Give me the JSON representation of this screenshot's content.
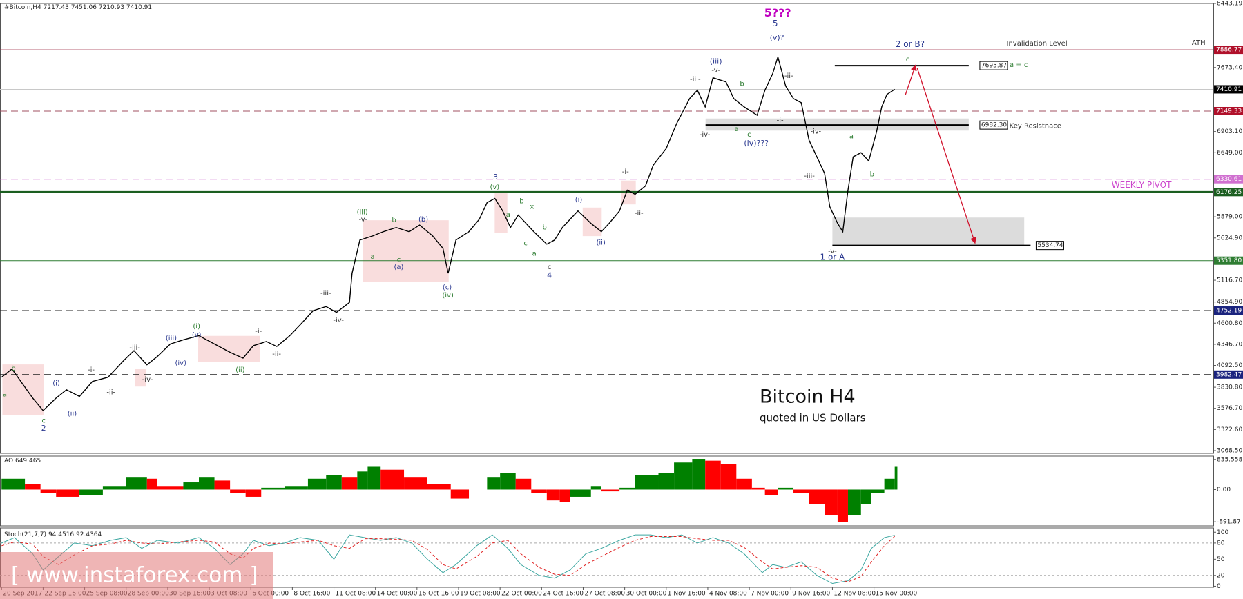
{
  "header": {
    "symbol": "#Bitcoin,H4",
    "ohlc": [
      7217.43,
      7451.06,
      7210.93,
      7410.91
    ]
  },
  "watermark": "[ www.instaforex.com ]",
  "chart_data": [
    {
      "type": "line",
      "title": "Bitcoin H4",
      "subtitle": "quoted in US Dollars",
      "color": "#000000",
      "x": [
        0,
        4,
        12,
        16,
        21,
        25,
        30,
        35,
        41,
        47,
        51,
        56,
        60,
        65,
        70,
        76,
        82,
        88,
        93,
        97,
        102,
        106,
        111,
        115,
        120,
        125,
        129,
        134,
        135,
        138,
        143,
        147,
        152,
        157,
        161,
        166,
        170,
        172,
        175,
        180,
        184,
        187,
        190,
        193,
        196,
        199,
        202,
        205,
        210,
        213,
        216,
        219,
        222,
        227,
        231,
        234,
        238,
        241,
        244,
        248,
        251,
        256,
        260,
        265,
        268,
        271,
        274,
        279,
        282,
        286,
        291,
        294,
        297,
        299,
        302,
        305,
        308,
        311,
        314,
        317,
        319,
        322,
        324,
        326,
        328,
        331,
        334,
        337,
        339,
        341,
        344
      ],
      "values": [
        3950,
        4050,
        3700,
        3550,
        3700,
        3800,
        3720,
        3900,
        3950,
        4150,
        4270,
        4100,
        4200,
        4350,
        4400,
        4450,
        4350,
        4250,
        4180,
        4330,
        4380,
        4320,
        4450,
        4580,
        4750,
        4800,
        4730,
        4850,
        5200,
        5600,
        5650,
        5700,
        5750,
        5700,
        5780,
        5650,
        5500,
        5200,
        5600,
        5700,
        5850,
        6050,
        6100,
        5950,
        5750,
        5900,
        5800,
        5700,
        5550,
        5600,
        5750,
        5850,
        5950,
        5800,
        5700,
        5800,
        5950,
        6200,
        6150,
        6250,
        6500,
        6700,
        7000,
        7300,
        7400,
        7200,
        7550,
        7500,
        7300,
        7200,
        7100,
        7400,
        7600,
        7800,
        7450,
        7300,
        7250,
        6800,
        6600,
        6400,
        6000,
        5800,
        5700,
        6200,
        6600,
        6650,
        6550,
        6900,
        7200,
        7350,
        7410.91
      ],
      "xlim": [
        -0.6,
        466.7
      ],
      "ylim": [
        3068.5,
        8443.19
      ],
      "yticks": [
        8443.19,
        {
          "value": 7673.4,
          "label": "7673.40"
        },
        {
          "value": 6903.1,
          "label": "6903.10"
        },
        {
          "value": 6649,
          "label": "6649.00"
        },
        {
          "value": 5879,
          "label": "5879.00"
        },
        {
          "value": 5624.9,
          "label": "5624.90"
        },
        {
          "value": 5116.7,
          "label": "5116.70"
        },
        {
          "value": 4854.9,
          "label": "4854.90"
        },
        {
          "value": 4600.8,
          "label": "4600.80"
        },
        {
          "value": 4346.7,
          "label": "4346.70"
        },
        {
          "value": 4092.5,
          "label": "4092.50"
        },
        {
          "value": 3830.8,
          "label": "3830.80"
        },
        {
          "value": 3576.7,
          "label": "3576.70"
        },
        {
          "value": 3322.6,
          "label": "3322.60"
        },
        {
          "value": 3068.5,
          "label": "3068.50"
        }
      ],
      "levels": [
        {
          "value": 7886.77,
          "color": "#a0304a",
          "box": "#b0102a",
          "dash": false,
          "width": 1
        },
        {
          "value": 7410.91,
          "color": "#c8c8c8",
          "box": "#000000",
          "dash": false,
          "width": 1
        },
        {
          "value": 7149.33,
          "color": "#a05060",
          "box": "#b0102a",
          "dash": true,
          "width": 1
        },
        {
          "value": 6330.61,
          "color": "#d070d0",
          "box": "#d070d0",
          "dash": true,
          "width": 1
        },
        {
          "value": 6176.25,
          "color": "#1b5e20",
          "box": "#1b5e20",
          "dash": false,
          "width": 3
        },
        {
          "value": 5351.8,
          "label": "5351.80",
          "color": "#2e7d32",
          "box": "#2e7d32",
          "dash": false,
          "width": 1
        },
        {
          "value": 4752.19,
          "color": "#222222",
          "box": "#1a237e",
          "dash": true,
          "width": 1
        },
        {
          "value": 3982.47,
          "color": "#222222",
          "box": "#1a237e",
          "dash": true,
          "width": 1
        }
      ],
      "targets": [
        {
          "value": 7695.87
        },
        {
          "value": 6982.3,
          "label": "6982.30"
        },
        {
          "value": 5534.74
        }
      ],
      "zones": [
        {
          "top": 7060,
          "bottom": 6915
        },
        {
          "top": 5870,
          "bottom": 5540
        }
      ],
      "annotations": [
        {
          "text": "5???",
          "color": "#c000c0"
        },
        {
          "text": "5",
          "color": "#2b3990"
        },
        {
          "text": "(v)?",
          "color": "#2b3990"
        },
        {
          "text": "2 or B?",
          "color": "#2b3990"
        },
        {
          "text": "Invalidation Level",
          "color": "#333333"
        },
        {
          "text": "ATH",
          "color": "#333333"
        },
        {
          "text": "c",
          "color": "#2e7d32"
        },
        {
          "text": "a = c",
          "color": "#2e7d32"
        },
        {
          "text": "Key Resistnace",
          "color": "#333333"
        },
        {
          "text": "WEEKLY PIVOT",
          "color": "#cc44cc"
        },
        {
          "text": "-v-",
          "color": "#333333"
        },
        {
          "text": "1 or A",
          "color": "#2b3990"
        },
        {
          "text": "(iii)",
          "color": "#2b3990"
        },
        {
          "text": "-v-",
          "color": "#333333"
        },
        {
          "text": "-iii-",
          "color": "#333333"
        },
        {
          "text": "b",
          "color": "#2e7d32"
        },
        {
          "text": "-ii-",
          "color": "#333333"
        },
        {
          "text": "-i-",
          "color": "#333333"
        },
        {
          "text": "a",
          "color": "#2e7d32"
        },
        {
          "text": "c",
          "color": "#2e7d32"
        },
        {
          "text": "-iv-",
          "color": "#333333"
        },
        {
          "text": "(iv)???",
          "color": "#2b3990"
        },
        {
          "text": "-iv-",
          "color": "#333333"
        },
        {
          "text": "a",
          "color": "#2e7d32"
        },
        {
          "text": "b",
          "color": "#2e7d32"
        },
        {
          "text": "-iii-",
          "color": "#333333"
        },
        {
          "text": "-i-",
          "color": "#333333"
        },
        {
          "text": "-ii-",
          "color": "#333333"
        },
        {
          "text": "3",
          "color": "#2b3990"
        },
        {
          "text": "(v)",
          "color": "#2e7d32"
        },
        {
          "text": "b",
          "color": "#2e7d32"
        },
        {
          "text": "x",
          "color": "#2e7d32"
        },
        {
          "text": "a",
          "color": "#2e7d32"
        },
        {
          "text": "b",
          "color": "#2e7d32"
        },
        {
          "text": "c",
          "color": "#2e7d32"
        },
        {
          "text": "a",
          "color": "#2e7d32"
        },
        {
          "text": "c",
          "color": "#333333"
        },
        {
          "text": "4",
          "color": "#2b3990"
        },
        {
          "text": "(i)",
          "color": "#2b3990"
        },
        {
          "text": "(ii)",
          "color": "#2b3990"
        },
        {
          "text": "(b)",
          "color": "#2b3990"
        },
        {
          "text": "b",
          "color": "#2e7d32"
        },
        {
          "text": "a",
          "color": "#2e7d32"
        },
        {
          "text": "c",
          "color": "#2e7d32"
        },
        {
          "text": "(a)",
          "color": "#2b3990"
        },
        {
          "text": "(c)",
          "color": "#2b3990"
        },
        {
          "text": "(iv)",
          "color": "#2e7d32"
        },
        {
          "text": "(iii)",
          "color": "#2e7d32"
        },
        {
          "text": "-v-",
          "color": "#333333"
        },
        {
          "text": "-iii-",
          "color": "#333333"
        },
        {
          "text": "-iv-",
          "color": "#333333"
        },
        {
          "text": "(i)",
          "color": "#2e7d32"
        },
        {
          "text": "(v)",
          "color": "#2b3990"
        },
        {
          "text": "(iii)",
          "color": "#2b3990"
        },
        {
          "text": "(iv)",
          "color": "#2b3990"
        },
        {
          "text": "-iii-",
          "color": "#333333"
        },
        {
          "text": "-iv-",
          "color": "#333333"
        },
        {
          "text": "-i-",
          "color": "#333333"
        },
        {
          "text": "-ii-",
          "color": "#333333"
        },
        {
          "text": "(ii)",
          "color": "#2e7d32"
        },
        {
          "text": "-i-",
          "color": "#333333"
        },
        {
          "text": "-ii-",
          "color": "#333333"
        },
        {
          "text": "(i)",
          "color": "#2b3990"
        },
        {
          "text": "(ii)",
          "color": "#2b3990"
        },
        {
          "text": "b",
          "color": "#2e7d32"
        },
        {
          "text": "a",
          "color": "#2e7d32"
        },
        {
          "text": "c",
          "color": "#2e7d32"
        },
        {
          "text": "2",
          "color": "#2b3990"
        }
      ]
    },
    {
      "type": "bar",
      "name": "AO",
      "up_color": "#008000",
      "down_color": "#ff0000",
      "x": [
        0,
        9,
        15,
        21,
        30,
        39,
        48,
        56,
        60,
        70,
        76,
        82,
        88,
        94,
        100,
        109,
        118,
        125,
        131,
        137,
        141,
        146,
        155,
        164,
        173,
        180,
        187,
        192,
        198,
        204,
        210,
        215,
        219,
        227,
        231,
        238,
        244,
        253,
        259,
        266,
        271,
        277,
        283,
        289,
        294,
        299,
        305,
        311,
        317,
        322,
        326,
        331,
        335,
        340,
        344
      ],
      "values": [
        300,
        150,
        -100,
        -200,
        -150,
        100,
        350,
        300,
        100,
        200,
        350,
        250,
        -100,
        -200,
        50,
        100,
        300,
        400,
        350,
        500,
        650,
        550,
        350,
        150,
        -250,
        0,
        350,
        450,
        300,
        -100,
        -300,
        -350,
        -200,
        100,
        -50,
        50,
        400,
        450,
        750,
        850,
        800,
        700,
        300,
        50,
        -150,
        50,
        -100,
        -400,
        -700,
        -900,
        -700,
        -400,
        -100,
        300,
        649.465
      ],
      "xlim": [
        -0.6,
        466.7
      ],
      "ylim": [
        -1004,
        927
      ],
      "yticks": [
        835.558,
        {
          "value": 0,
          "label": "0.00"
        },
        -891.87
      ]
    },
    {
      "type": "line",
      "name": "Stoch(21,7,7)",
      "x": [
        0,
        5,
        12,
        16,
        22,
        28,
        35,
        42,
        48,
        54,
        60,
        68,
        76,
        82,
        88,
        93,
        97,
        103,
        109,
        115,
        122,
        128,
        134,
        140,
        146,
        152,
        158,
        164,
        170,
        175,
        183,
        189,
        195,
        200,
        207,
        213,
        219,
        225,
        231,
        238,
        244,
        250,
        256,
        262,
        268,
        274,
        280,
        286,
        293,
        297,
        302,
        308,
        314,
        320,
        326,
        331,
        335,
        340,
        344
      ],
      "series": [
        {
          "color": "#3aa6a0",
          "dashed": false,
          "values": [
            80,
            90,
            60,
            30,
            55,
            80,
            75,
            85,
            90,
            70,
            85,
            80,
            90,
            70,
            40,
            60,
            85,
            75,
            80,
            90,
            85,
            50,
            95,
            90,
            85,
            90,
            80,
            50,
            25,
            40,
            75,
            95,
            70,
            40,
            20,
            15,
            30,
            60,
            70,
            85,
            95,
            95,
            90,
            95,
            80,
            90,
            80,
            60,
            25,
            40,
            35,
            45,
            20,
            5,
            10,
            30,
            70,
            90,
            94.4516
          ]
        },
        {
          "color": "#e02020",
          "dashed": true,
          "values": [
            75,
            82,
            78,
            55,
            40,
            58,
            75,
            78,
            85,
            80,
            78,
            82,
            85,
            82,
            60,
            52,
            70,
            80,
            78,
            82,
            85,
            75,
            70,
            88,
            88,
            87,
            85,
            68,
            40,
            32,
            55,
            80,
            85,
            60,
            35,
            22,
            20,
            40,
            55,
            72,
            85,
            92,
            92,
            92,
            88,
            85,
            85,
            72,
            45,
            32,
            35,
            38,
            35,
            15,
            8,
            18,
            45,
            75,
            92.4364
          ]
        }
      ],
      "xlim": [
        -0.6,
        466.7
      ],
      "ylim": [
        -2,
        108
      ],
      "yticks": [
        100,
        80,
        50,
        20,
        0
      ],
      "level_lines": [
        80,
        20
      ],
      "xticks": [
        {
          "value": 0,
          "label": "20 Sep 2017"
        },
        {
          "value": 16,
          "label": "22 Sep 16:00"
        },
        {
          "value": 32,
          "label": "25 Sep 08:00"
        },
        {
          "value": 48,
          "label": "28 Sep 00:00"
        },
        {
          "value": 64,
          "label": "30 Sep 16:00"
        },
        {
          "value": 80,
          "label": "3 Oct 08:00"
        },
        {
          "value": 96,
          "label": "6 Oct 00:00"
        },
        {
          "value": 112,
          "label": "8 Oct 16:00"
        },
        {
          "value": 128,
          "label": "11 Oct 08:00"
        },
        {
          "value": 144,
          "label": "14 Oct 00:00"
        },
        {
          "value": 160,
          "label": "16 Oct 16:00"
        },
        {
          "value": 176,
          "label": "19 Oct 08:00"
        },
        {
          "value": 192,
          "label": "22 Oct 00:00"
        },
        {
          "value": 208,
          "label": "24 Oct 16:00"
        },
        {
          "value": 224,
          "label": "27 Oct 08:00"
        },
        {
          "value": 240,
          "label": "30 Oct 00:00"
        },
        {
          "value": 256,
          "label": "1 Nov 16:00"
        },
        {
          "value": 272,
          "label": "4 Nov 08:00"
        },
        {
          "value": 288,
          "label": "7 Nov 00:00"
        },
        {
          "value": 304,
          "label": "9 Nov 16:00"
        },
        {
          "value": 320,
          "label": "12 Nov 08:00"
        },
        {
          "value": 336,
          "label": "15 Nov 00:00"
        }
      ]
    }
  ]
}
